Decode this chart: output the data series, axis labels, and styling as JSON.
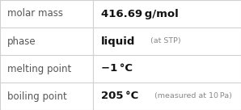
{
  "rows": [
    {
      "label": "molar mass",
      "value_bold": "416.69 g/mol",
      "value_note": ""
    },
    {
      "label": "phase",
      "value_bold": "liquid",
      "value_note": "(at STP)"
    },
    {
      "label": "melting point",
      "value_bold": "−1 °C",
      "value_note": ""
    },
    {
      "label": "boiling point",
      "value_bold": "205 °C",
      "value_note": "(measured at 10 Pa)"
    }
  ],
  "col_split": 0.385,
  "background_color": "#ffffff",
  "border_color": "#d0d0d0",
  "label_color": "#555555",
  "value_color": "#111111",
  "note_color": "#888888",
  "label_fontsize": 8.5,
  "value_fontsize": 9.5,
  "note_fontsize": 6.8,
  "fig_width": 2.98,
  "fig_height": 1.36,
  "dpi": 100
}
